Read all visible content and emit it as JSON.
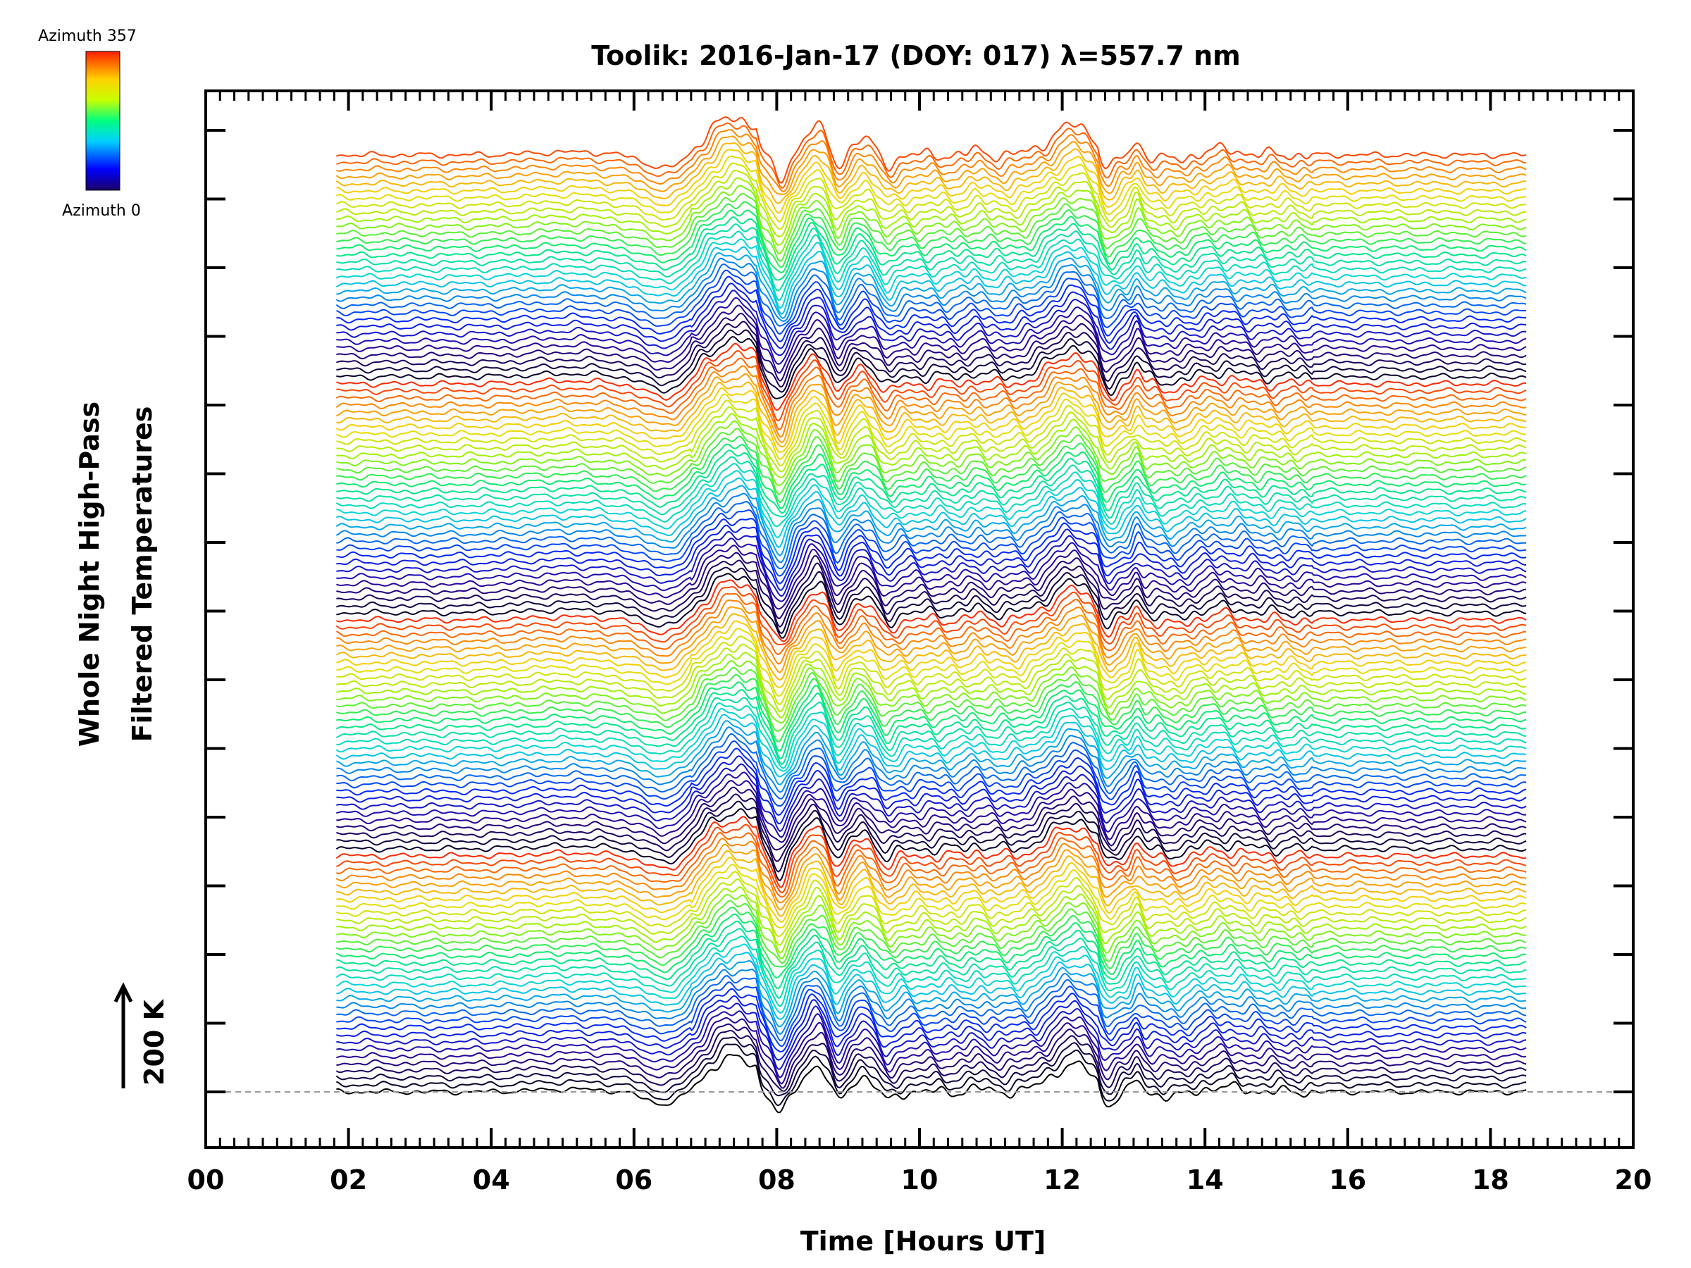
{
  "chart_data": {
    "type": "line",
    "title": "Toolik: 2016-Jan-17 (DOY: 017) λ=557.7 nm",
    "xlabel": "Time [Hours UT]",
    "ylabel_line1": "Whole Night High-Pass",
    "ylabel_line2": "Filtered Temperatures",
    "xlim": [
      0,
      20
    ],
    "x_tick_labels": [
      "00",
      "02",
      "04",
      "06",
      "08",
      "10",
      "12",
      "14",
      "16",
      "18",
      "20"
    ],
    "data_time_range": [
      1.83,
      18.5
    ],
    "series_count": 132,
    "y_scale_label": "200 K",
    "colorbar": {
      "top_label": "Azimuth 357",
      "bottom_label": "Azimuth 0",
      "colormap": "rainbow"
    },
    "events": [
      {
        "name": "rise",
        "time_start": 6.2,
        "time_peak": 7.55
      },
      {
        "name": "sharp_drop",
        "time": 7.75
      },
      {
        "name": "oscillations",
        "time_start": 8.0,
        "time_end": 9.6
      },
      {
        "name": "bump",
        "time_peak": 12.2
      },
      {
        "name": "drop",
        "time": 12.55
      },
      {
        "name": "spike",
        "time": 13.05
      }
    ]
  }
}
